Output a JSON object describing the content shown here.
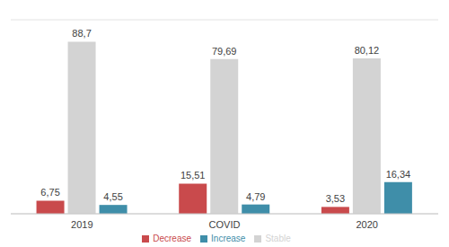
{
  "chart_data": {
    "type": "bar",
    "categories": [
      "2019",
      "COVID",
      "2020"
    ],
    "series": [
      {
        "name": "Decrease",
        "color": "#c94a4c",
        "values": [
          6.75,
          15.51,
          3.53
        ],
        "value_labels": [
          "6,75",
          "15,51",
          "3,53"
        ]
      },
      {
        "name": "Stable",
        "color": "#d3d3d3",
        "values": [
          88.7,
          79.69,
          80.12
        ],
        "value_labels": [
          "88,7",
          "79,69",
          "80,12"
        ]
      },
      {
        "name": "Increase",
        "color": "#3f8ea9",
        "values": [
          4.55,
          4.79,
          16.34
        ],
        "value_labels": [
          "4,55",
          "4,79",
          "16,34"
        ]
      }
    ],
    "ylim": [
      0,
      100
    ],
    "yticks": [
      0,
      10,
      20,
      30,
      40,
      50,
      60,
      70,
      80,
      90,
      100
    ],
    "grid": true,
    "data_labels": true,
    "tick_labels": "x",
    "legend": "bottom"
  }
}
